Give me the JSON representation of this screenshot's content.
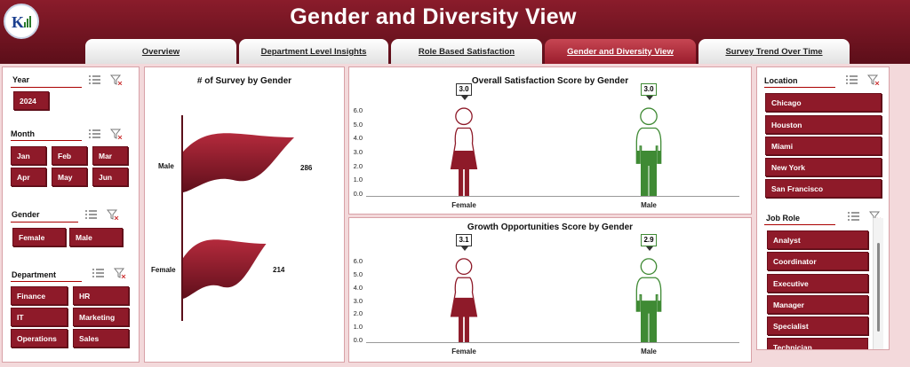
{
  "app": {
    "title": "Gender and Diversity View"
  },
  "tabs": [
    {
      "label": "Overview",
      "active": false
    },
    {
      "label": "Department Level Insights",
      "active": false
    },
    {
      "label": "Role Based Satisfaction",
      "active": false
    },
    {
      "label": "Gender and Diversity View",
      "active": true
    },
    {
      "label": "Survey Trend Over Time",
      "active": false
    }
  ],
  "filters": {
    "year": {
      "title": "Year",
      "items": [
        "2024"
      ]
    },
    "month": {
      "title": "Month",
      "items": [
        "Jan",
        "Feb",
        "Mar",
        "Apr",
        "May",
        "Jun"
      ]
    },
    "gender": {
      "title": "Gender",
      "items": [
        "Female",
        "Male"
      ]
    },
    "department": {
      "title": "Department",
      "items": [
        "Finance",
        "HR",
        "IT",
        "Marketing",
        "Operations",
        "Sales"
      ]
    },
    "location": {
      "title": "Location",
      "items": [
        "Chicago",
        "Houston",
        "Miami",
        "New York",
        "San Francisco"
      ]
    },
    "job_role": {
      "title": "Job Role",
      "items": [
        "Analyst",
        "Coordinator",
        "Executive",
        "Manager",
        "Specialist",
        "Technician"
      ]
    }
  },
  "colors": {
    "maroon": "#8e1a29",
    "green": "#3f8a34",
    "header": "#6f1421"
  },
  "chart_data": [
    {
      "type": "bar",
      "title": "# of Survey by Gender",
      "categories": [
        "Male",
        "Female"
      ],
      "values": [
        286,
        214
      ]
    },
    {
      "type": "bar",
      "title": "Overall Satisfaction Score by Gender",
      "categories": [
        "Female",
        "Male"
      ],
      "values": [
        3.0,
        3.0
      ],
      "labels": [
        "3.0",
        "3.0"
      ],
      "yticks": [
        "6.0",
        "5.0",
        "4.0",
        "3.0",
        "2.0",
        "1.0",
        "0.0"
      ],
      "ylim": [
        0,
        6
      ]
    },
    {
      "type": "bar",
      "title": "Growth Opportunities Score by Gender",
      "categories": [
        "Female",
        "Male"
      ],
      "values": [
        3.1,
        2.9
      ],
      "labels": [
        "3.1",
        "2.9"
      ],
      "yticks": [
        "6.0",
        "5.0",
        "4.0",
        "3.0",
        "2.0",
        "1.0",
        "0.0"
      ],
      "ylim": [
        0,
        6
      ]
    }
  ]
}
